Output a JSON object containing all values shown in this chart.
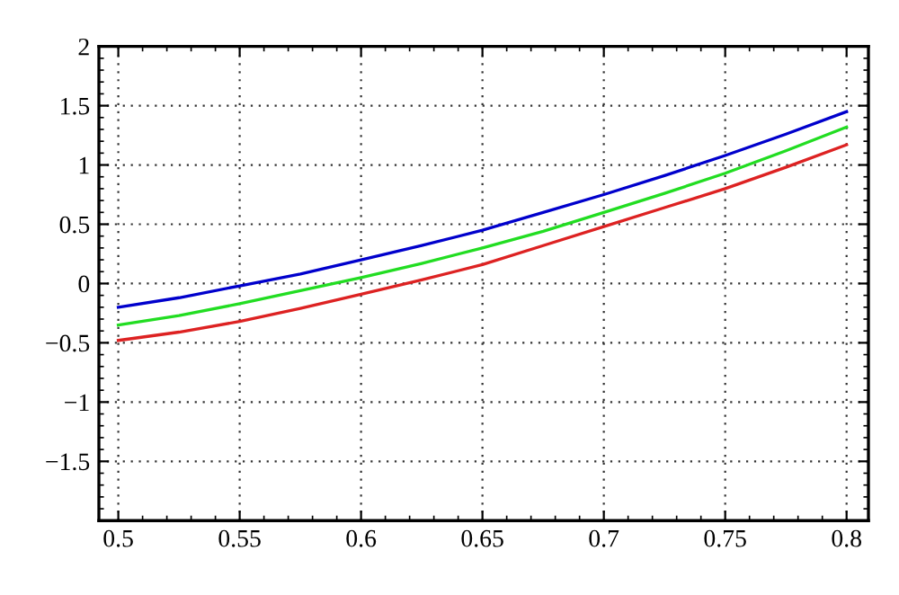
{
  "chart_data": {
    "type": "line",
    "x": [
      0.5,
      0.525,
      0.55,
      0.575,
      0.6,
      0.625,
      0.65,
      0.675,
      0.7,
      0.725,
      0.75,
      0.775,
      0.8
    ],
    "series": [
      {
        "color": "#0000cc",
        "values": [
          -0.2,
          -0.12,
          -0.02,
          0.08,
          0.2,
          0.32,
          0.45,
          0.6,
          0.75,
          0.91,
          1.08,
          1.26,
          1.45
        ]
      },
      {
        "color": "#22dd22",
        "values": [
          -0.35,
          -0.27,
          -0.17,
          -0.06,
          0.05,
          0.17,
          0.3,
          0.44,
          0.6,
          0.76,
          0.93,
          1.12,
          1.32
        ]
      },
      {
        "color": "#dd2222",
        "values": [
          -0.48,
          -0.41,
          -0.32,
          -0.21,
          -0.09,
          0.03,
          0.16,
          0.32,
          0.48,
          0.64,
          0.8,
          0.98,
          1.17
        ]
      }
    ],
    "xlim": [
      0.492,
      0.809
    ],
    "xticks": [
      0.5,
      0.55,
      0.6,
      0.65,
      0.7,
      0.75,
      0.8
    ],
    "ylim": [
      -2,
      2
    ],
    "yticks": [
      {
        "value": -2,
        "label": null
      },
      {
        "value": -1.5,
        "label": "−1.5"
      },
      {
        "value": -1,
        "label": "−1"
      },
      {
        "value": -0.5,
        "label": "−0.5"
      },
      0,
      0.5,
      1,
      1.5,
      2
    ],
    "grid": true,
    "line_style": "solid",
    "marker": "none"
  }
}
